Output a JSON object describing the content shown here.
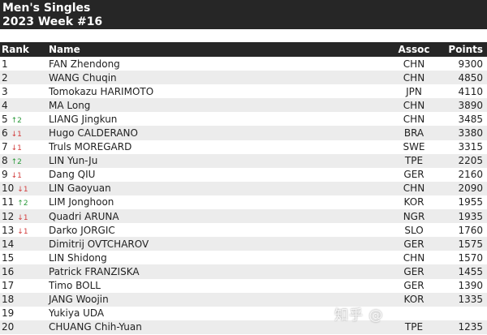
{
  "title": {
    "line1": "Men's Singles",
    "line2": "2023 Week #16"
  },
  "headers": {
    "rank": "Rank",
    "name": "Name",
    "assoc": "Assoc",
    "points": "Points"
  },
  "colors": {
    "header_bg": "#262626",
    "up": "#2a9a3a",
    "down": "#d23b3b",
    "stripe": "#ececec"
  },
  "rows": [
    {
      "rank": "1",
      "change": "",
      "dir": "",
      "name": "FAN Zhendong",
      "assoc": "CHN",
      "points": "9300"
    },
    {
      "rank": "2",
      "change": "",
      "dir": "",
      "name": "WANG Chuqin",
      "assoc": "CHN",
      "points": "4850"
    },
    {
      "rank": "3",
      "change": "",
      "dir": "",
      "name": "Tomokazu HARIMOTO",
      "assoc": "JPN",
      "points": "4110"
    },
    {
      "rank": "4",
      "change": "",
      "dir": "",
      "name": "MA Long",
      "assoc": "CHN",
      "points": "3890"
    },
    {
      "rank": "5",
      "change": "↑2",
      "dir": "up",
      "name": "LIANG Jingkun",
      "assoc": "CHN",
      "points": "3485"
    },
    {
      "rank": "6",
      "change": "↓1",
      "dir": "down",
      "name": "Hugo CALDERANO",
      "assoc": "BRA",
      "points": "3380"
    },
    {
      "rank": "7",
      "change": "↓1",
      "dir": "down",
      "name": "Truls MOREGARD",
      "assoc": "SWE",
      "points": "3315"
    },
    {
      "rank": "8",
      "change": "↑2",
      "dir": "up",
      "name": "LIN Yun-Ju",
      "assoc": "TPE",
      "points": "2205"
    },
    {
      "rank": "9",
      "change": "↓1",
      "dir": "down",
      "name": "Dang QIU",
      "assoc": "GER",
      "points": "2160"
    },
    {
      "rank": "10",
      "change": "↓1",
      "dir": "down",
      "name": "LIN Gaoyuan",
      "assoc": "CHN",
      "points": "2090"
    },
    {
      "rank": "11",
      "change": "↑2",
      "dir": "up",
      "name": "LIM Jonghoon",
      "assoc": "KOR",
      "points": "1955"
    },
    {
      "rank": "12",
      "change": "↓1",
      "dir": "down",
      "name": "Quadri ARUNA",
      "assoc": "NGR",
      "points": "1935"
    },
    {
      "rank": "13",
      "change": "↓1",
      "dir": "down",
      "name": "Darko JORGIC",
      "assoc": "SLO",
      "points": "1760"
    },
    {
      "rank": "14",
      "change": "",
      "dir": "",
      "name": "Dimitrij OVTCHAROV",
      "assoc": "GER",
      "points": "1575"
    },
    {
      "rank": "15",
      "change": "",
      "dir": "",
      "name": "LIN Shidong",
      "assoc": "CHN",
      "points": "1570"
    },
    {
      "rank": "16",
      "change": "",
      "dir": "",
      "name": "Patrick FRANZISKA",
      "assoc": "GER",
      "points": "1455"
    },
    {
      "rank": "17",
      "change": "",
      "dir": "",
      "name": "Timo BOLL",
      "assoc": "GER",
      "points": "1390"
    },
    {
      "rank": "18",
      "change": "",
      "dir": "",
      "name": "JANG Woojin",
      "assoc": "KOR",
      "points": "1335"
    },
    {
      "rank": "19",
      "change": "",
      "dir": "",
      "name": "Yukiya UDA",
      "assoc": "",
      "points": ""
    },
    {
      "rank": "20",
      "change": "",
      "dir": "",
      "name": "CHUANG Chih-Yuan",
      "assoc": "TPE",
      "points": "1235"
    }
  ],
  "watermark": "知乎 @"
}
